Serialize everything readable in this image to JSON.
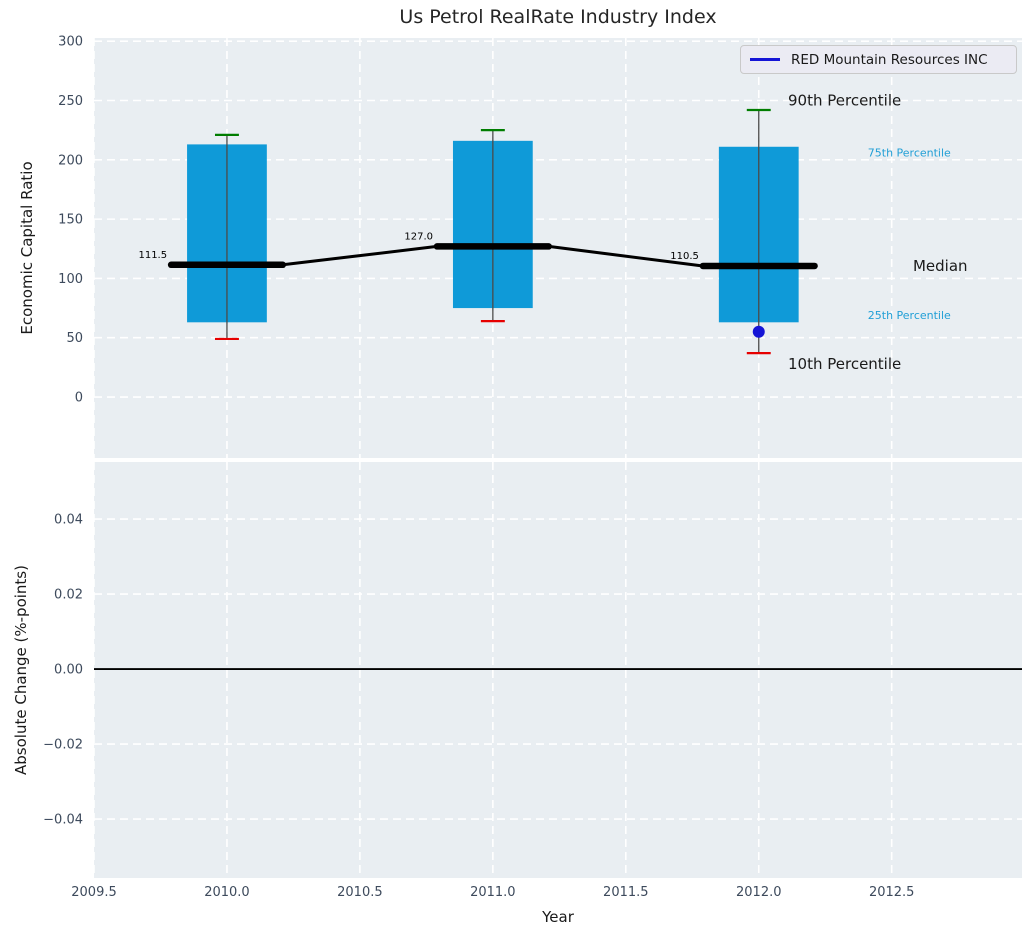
{
  "title": "Us Petrol RealRate Industry Index",
  "legend": {
    "label": "RED Mountain Resources INC",
    "line_color": "#1414d6"
  },
  "colors": {
    "figure_bg": "#ffffff",
    "axes_bg": "#e9eef2",
    "grid": "#ffffff",
    "box_fill": "#0f9ad8",
    "p90_cap": "#007d00",
    "p10_cap": "#e60000",
    "median": "#000000",
    "whisker": "#4a4a4a",
    "company": "#1414d6",
    "tick_text": "#3d4a5c",
    "label_text": "#1a1a1a",
    "title_text": "#262626",
    "percentile_text": "#219fd6",
    "zero_line": "#000000"
  },
  "chart_data": [
    {
      "type": "box",
      "panel": "top",
      "ylabel": "Economic Capital Ratio",
      "ylim": [
        -51.4,
        302.7
      ],
      "xlim": [
        2009.5,
        2012.99
      ],
      "grid": true,
      "yticks": [
        {
          "value": 0,
          "label": "0"
        },
        {
          "value": 50,
          "label": "50"
        },
        {
          "value": 100,
          "label": "100"
        },
        {
          "value": 150,
          "label": "150"
        },
        {
          "value": 200,
          "label": "200"
        },
        {
          "value": 250,
          "label": "250"
        },
        {
          "value": 300,
          "label": "300"
        }
      ],
      "box_half_width": 0.15,
      "median_half_width": 0.21,
      "cap_half_width": 0.045,
      "boxes": [
        {
          "x": 2010,
          "p10": 49,
          "p25": 63,
          "median": 111.5,
          "p75": 213,
          "p90": 221,
          "median_label": "111.5"
        },
        {
          "x": 2011,
          "p10": 64,
          "p25": 75,
          "median": 127.0,
          "p75": 216,
          "p90": 225,
          "median_label": "127.0"
        },
        {
          "x": 2012,
          "p10": 37,
          "p25": 63,
          "median": 110.5,
          "p75": 211,
          "p90": 242,
          "median_label": "110.5"
        }
      ],
      "company_series": {
        "name": "RED Mountain Resources INC",
        "points": [
          {
            "x": 2012,
            "y": 55
          }
        ]
      },
      "annotations": [
        {
          "text": "90th Percentile",
          "x": 2012.11,
          "y": 250,
          "size": 15,
          "color": "#1a1a1a"
        },
        {
          "text": "75th Percentile",
          "x": 2012.41,
          "y": 206,
          "size": 11,
          "color": "#219fd6"
        },
        {
          "text": "Median",
          "x": 2012.58,
          "y": 110.5,
          "size": 15,
          "color": "#1a1a1a"
        },
        {
          "text": "25th Percentile",
          "x": 2012.41,
          "y": 69,
          "size": 11,
          "color": "#219fd6"
        },
        {
          "text": "10th Percentile",
          "x": 2012.11,
          "y": 28,
          "size": 15,
          "color": "#1a1a1a"
        }
      ]
    },
    {
      "type": "line",
      "panel": "bottom",
      "ylabel": "Absolute Change (%-points)",
      "xlabel": "Year",
      "ylim": [
        -0.0557,
        0.0552
      ],
      "xlim": [
        2009.5,
        2012.99
      ],
      "grid": true,
      "zero_line": 0.0,
      "series": [],
      "yticks": [
        {
          "value": 0.04,
          "label": "0.04"
        },
        {
          "value": 0.02,
          "label": "0.02"
        },
        {
          "value": 0.0,
          "label": "0.00"
        },
        {
          "value": -0.02,
          "label": "−0.02"
        },
        {
          "value": -0.04,
          "label": "−0.04"
        }
      ],
      "xticks": [
        {
          "value": 2009.5,
          "label": "2009.5"
        },
        {
          "value": 2010.0,
          "label": "2010.0"
        },
        {
          "value": 2010.5,
          "label": "2010.5"
        },
        {
          "value": 2011.0,
          "label": "2011.0"
        },
        {
          "value": 2011.5,
          "label": "2011.5"
        },
        {
          "value": 2012.0,
          "label": "2012.0"
        },
        {
          "value": 2012.5,
          "label": "2012.5"
        }
      ]
    }
  ]
}
